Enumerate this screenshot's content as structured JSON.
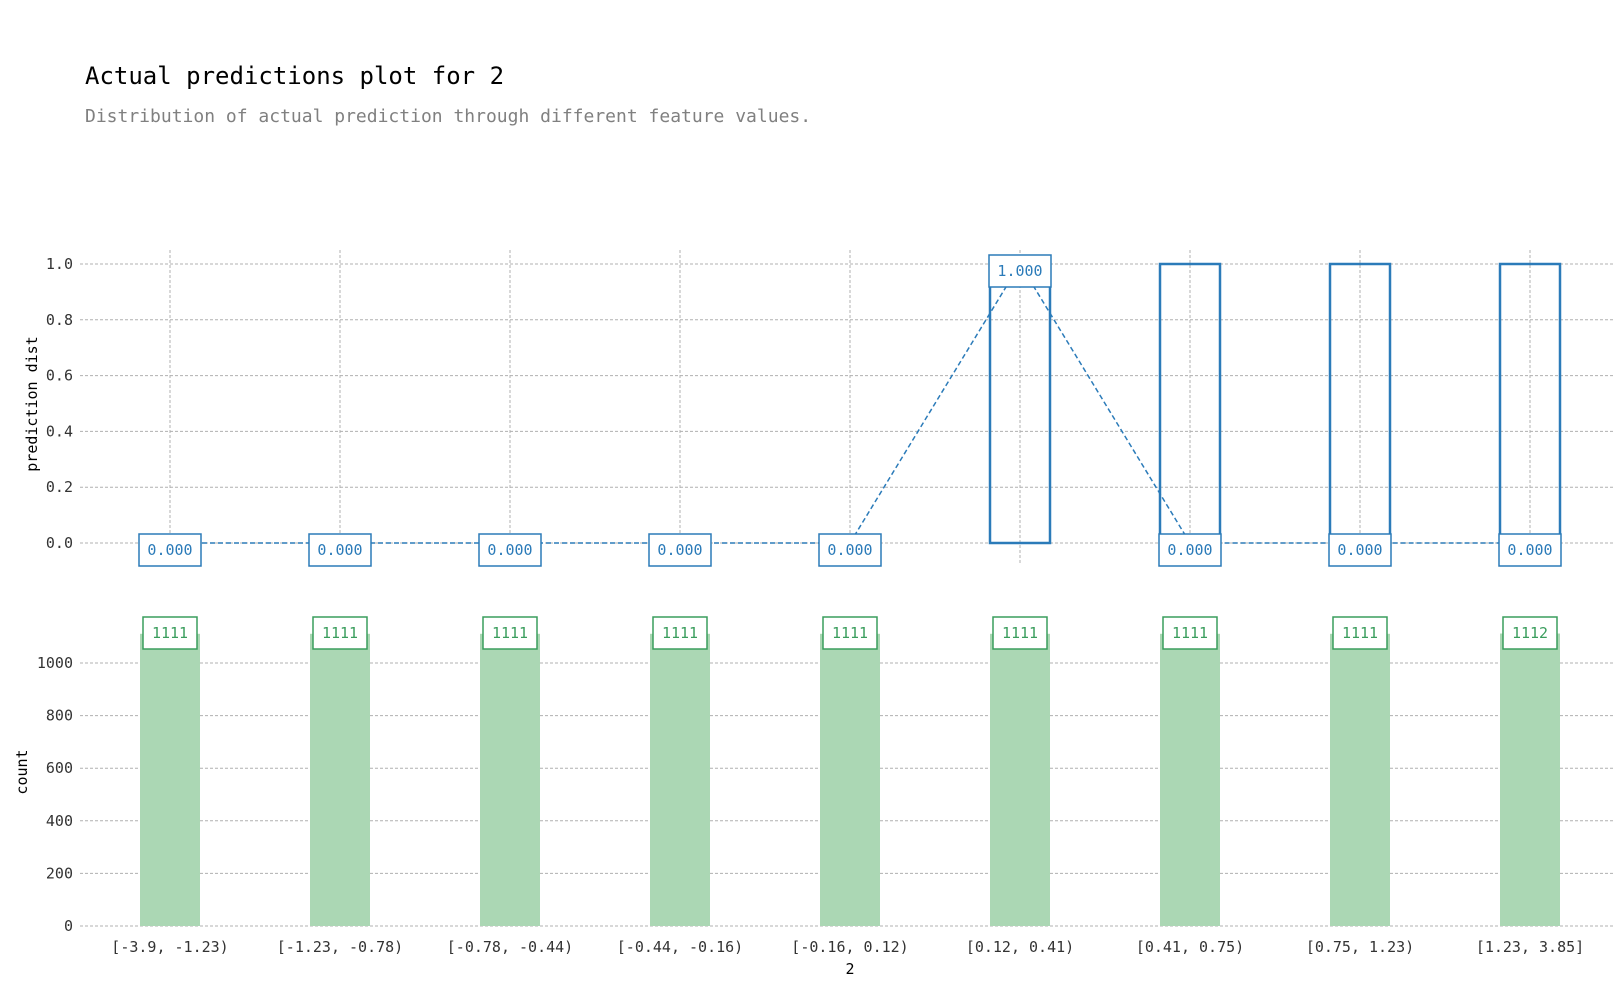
{
  "title": "Actual predictions plot for 2",
  "subtitle": "Distribution of actual prediction through different feature values.",
  "colors": {
    "prediction": "#2b7bb9",
    "count_bar": "#abd7b4",
    "count_label": "#3a9d5d",
    "grid": "#b0b0b0"
  },
  "chart_data": {
    "type": "bar",
    "categories": [
      "[-3.9, -1.23)",
      "[-1.23, -0.78)",
      "[-0.78, -0.44)",
      "[-0.44, -0.16)",
      "[-0.16, 0.12)",
      "[0.12, 0.41)",
      "[0.41, 0.75)",
      "[0.75, 1.23)",
      "[1.23, 3.85]"
    ],
    "xlabel": "2",
    "panels": [
      {
        "name": "prediction",
        "ylabel": "prediction dist",
        "ylim": [
          0,
          1
        ],
        "yticks": [
          "0.0",
          "0.2",
          "0.4",
          "0.6",
          "0.8",
          "1.0"
        ],
        "values": [
          0,
          0,
          0,
          0,
          0,
          1,
          1,
          1,
          1
        ],
        "line_values": [
          0,
          0,
          0,
          0,
          0,
          1,
          0,
          0,
          0
        ],
        "labels": [
          "0.000",
          "0.000",
          "0.000",
          "0.000",
          "0.000",
          "1.000",
          "0.000",
          "0.000",
          "0.000"
        ]
      },
      {
        "name": "count",
        "ylabel": "count",
        "ylim": [
          0,
          1112
        ],
        "yticks": [
          "0",
          "200",
          "400",
          "600",
          "800",
          "1000"
        ],
        "values": [
          1111,
          1111,
          1111,
          1111,
          1111,
          1111,
          1111,
          1111,
          1112
        ],
        "labels": [
          "1111",
          "1111",
          "1111",
          "1111",
          "1111",
          "1111",
          "1111",
          "1111",
          "1112"
        ]
      }
    ],
    "grid": true
  }
}
